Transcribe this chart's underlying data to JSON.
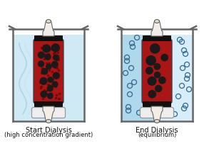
{
  "fig_width": 3.0,
  "fig_height": 2.06,
  "dpi": 100,
  "bg_color": "#ffffff",
  "beaker_line_color": "#666666",
  "beaker_fill_left": "#d0eaf5",
  "beaker_fill_right": "#b0d8ec",
  "tube_fill_color": "#aa1515",
  "tube_line_color": "#444444",
  "large_dot_color": "#1a1a1a",
  "small_dot_ec": "#336688",
  "stir_bar_color": "#eeeeee",
  "stir_bar_outline": "#999999",
  "title_left": "Start Dialysis",
  "subtitle_left": "(high concentration gradient)",
  "title_right": "End Dialysis",
  "subtitle_right": "(equilibrium)",
  "font_size_title": 7.0,
  "font_size_sub": 6.0,
  "wave_color": "#c0dce8",
  "clip_color": "#111111",
  "bag_fabric_color": "#f2ede6",
  "bag_fabric_edge": "#666666",
  "highlight_color": "#e8f6ff"
}
